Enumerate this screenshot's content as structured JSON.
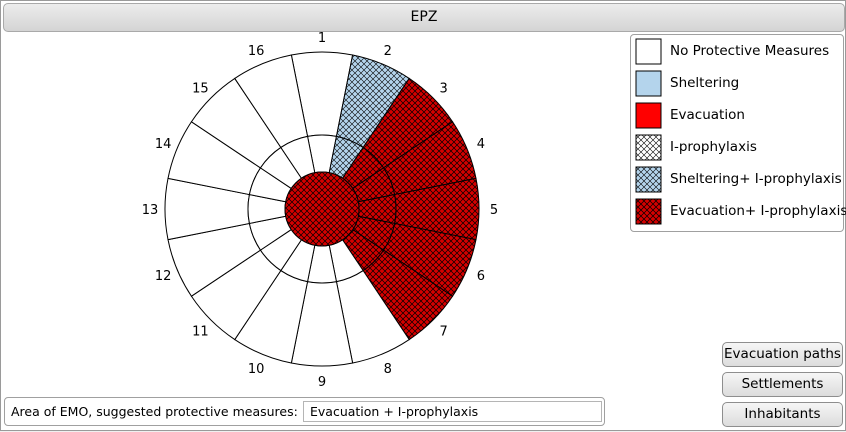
{
  "window": {
    "title": "EPZ"
  },
  "legend": {
    "items": [
      {
        "label": "No Protective Measures",
        "fill": "#ffffff",
        "hatch": false
      },
      {
        "label": "Sheltering",
        "fill": "#b4d4ec",
        "hatch": false
      },
      {
        "label": "Evacuation",
        "fill": "#ff0000",
        "hatch": false
      },
      {
        "label": "I-prophylaxis",
        "fill": "#ffffff",
        "hatch": true
      },
      {
        "label": "Sheltering+ I-prophylaxis",
        "fill": "#b4d4ec",
        "hatch": true
      },
      {
        "label": "Evacuation+ I-prophylaxis",
        "fill": "#d40000",
        "hatch": true
      }
    ]
  },
  "sectors": {
    "labels": [
      "1",
      "2",
      "3",
      "4",
      "5",
      "6",
      "7",
      "8",
      "9",
      "10",
      "11",
      "12",
      "13",
      "14",
      "15",
      "16"
    ],
    "outer_measure": [
      "none",
      "sheltering+iodine",
      "evac+iodine",
      "evac+iodine",
      "evac+iodine",
      "evac+iodine",
      "evac+iodine",
      "none",
      "none",
      "none",
      "none",
      "none",
      "none",
      "none",
      "none",
      "none"
    ],
    "inner_measure": [
      "none",
      "sheltering+iodine",
      "evac+iodine",
      "evac+iodine",
      "evac+iodine",
      "evac+iodine",
      "evac+iodine",
      "none",
      "none",
      "none",
      "none",
      "none",
      "none",
      "none",
      "none",
      "none"
    ],
    "center_measure": "evac+iodine"
  },
  "buttons": {
    "evacuation_paths": "Evacuation paths",
    "settlements": "Settlements",
    "inhabitants": "Inhabitants"
  },
  "area": {
    "label": "Area of EMO, suggested protective measures:",
    "value": "Evacuation + I-prophylaxis"
  },
  "colors": {
    "sheltering": "#b4d4ec",
    "evacuation": "#d40000",
    "none": "#ffffff",
    "hatch_line": "#000000"
  }
}
